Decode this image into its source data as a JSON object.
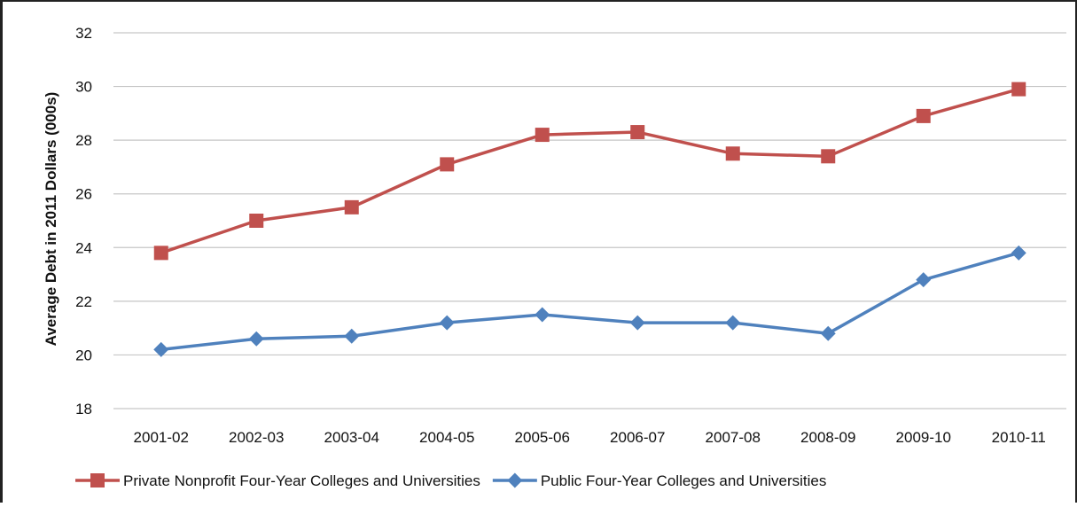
{
  "chart_data": {
    "type": "line",
    "title": "",
    "xlabel": "",
    "ylabel": "Average Debt in 2011 Dollars (000s)",
    "ylim": [
      18,
      32
    ],
    "yticks": [
      18,
      20,
      22,
      24,
      26,
      28,
      30,
      32
    ],
    "grid": true,
    "legend_position": "bottom",
    "categories": [
      "2001-02",
      "2002-03",
      "2003-04",
      "2004-05",
      "2005-06",
      "2006-07",
      "2007-08",
      "2008-09",
      "2009-10",
      "2010-11"
    ],
    "series": [
      {
        "name": "Private Nonprofit Four-Year Colleges and Universities",
        "color": "#c0504d",
        "marker": "square",
        "values": [
          23.8,
          25.0,
          25.5,
          27.1,
          28.2,
          28.3,
          27.5,
          27.4,
          28.9,
          29.9
        ]
      },
      {
        "name": "Public Four-Year Colleges and Universities",
        "color": "#4f81bd",
        "marker": "diamond",
        "values": [
          20.2,
          20.6,
          20.7,
          21.2,
          21.5,
          21.2,
          21.2,
          20.8,
          22.8,
          23.8
        ]
      }
    ]
  }
}
